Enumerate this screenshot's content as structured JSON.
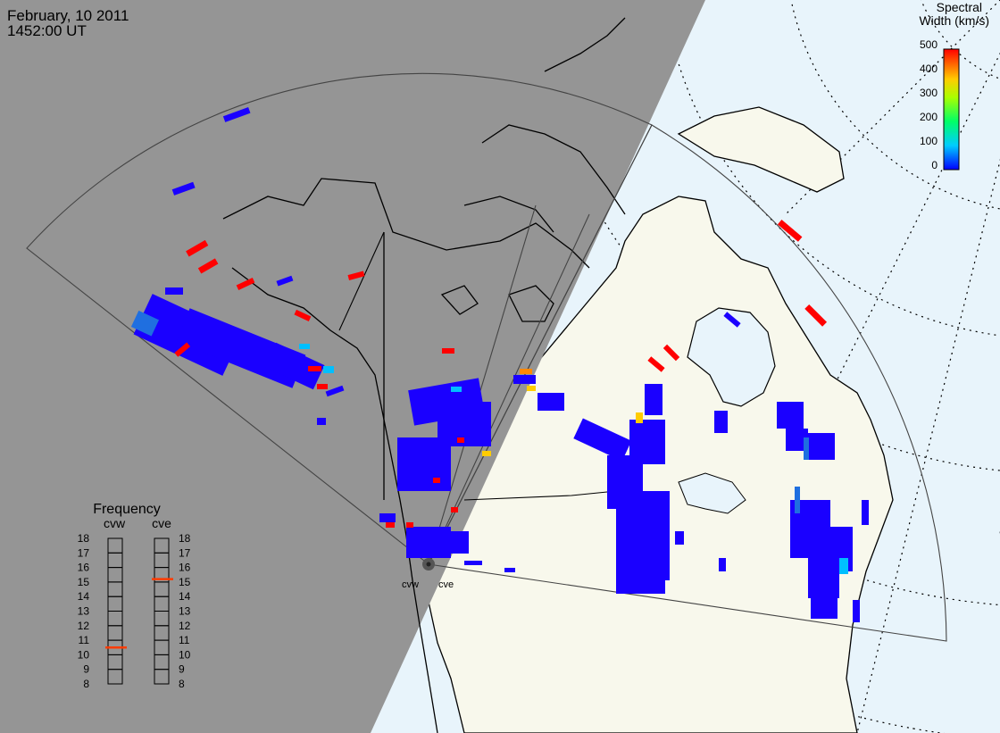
{
  "header": {
    "date": "February, 10 2011",
    "time": "1452:00 UT"
  },
  "colorbar": {
    "title_line1": "Spectral",
    "title_line2": "Width (km/s)",
    "ticks": [
      "500",
      "400",
      "300",
      "200",
      "100",
      "0"
    ]
  },
  "frequency_panel": {
    "title": "Frequency",
    "columns": [
      "cvw",
      "cve"
    ],
    "ticks": [
      "18",
      "17",
      "16",
      "15",
      "14",
      "13",
      "12",
      "11",
      "10",
      "9",
      "8"
    ],
    "cvw_indicator_mhz": 10.5,
    "cve_indicator_mhz": 15.2
  },
  "radars": {
    "west_label": "cvw",
    "east_label": "cve"
  },
  "colors": {
    "night": "#959595",
    "day_land": "#f8f8ec",
    "ocean_day": "#e8f4fb",
    "scatter_low": "#1a00ff",
    "scatter_mid": "#00bfff",
    "scatter_high": "#ff0000"
  }
}
